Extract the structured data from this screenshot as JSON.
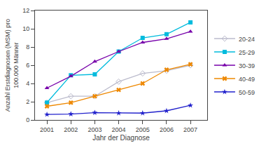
{
  "chart_data": {
    "type": "line",
    "x": [
      2001,
      2002,
      2003,
      2004,
      2005,
      2006,
      2007
    ],
    "series": [
      {
        "name": "20-24",
        "color": "#bbbbcc",
        "marker": "diamond-open",
        "values": [
          1.9,
          2.6,
          2.6,
          4.2,
          5.1,
          5.4,
          6.0
        ]
      },
      {
        "name": "25-29",
        "color": "#00bbdd",
        "marker": "square",
        "values": [
          1.9,
          4.9,
          5.0,
          7.5,
          9.0,
          9.4,
          10.7
        ]
      },
      {
        "name": "30-39",
        "color": "#7700aa",
        "marker": "triangle-up",
        "values": [
          3.5,
          4.8,
          6.4,
          7.5,
          8.5,
          8.9,
          9.7
        ]
      },
      {
        "name": "40-49",
        "color": "#ee8800",
        "marker": "x",
        "values": [
          1.5,
          1.9,
          2.6,
          3.3,
          4.0,
          5.5,
          6.1
        ]
      },
      {
        "name": "50-59",
        "color": "#2222cc",
        "marker": "star",
        "values": [
          0.6,
          0.65,
          0.8,
          0.75,
          0.75,
          1.0,
          1.6
        ]
      }
    ],
    "x_label": "Jahr der Diagnose",
    "y_label": "Anzahl Erstdiagnosen (MSM) pro\n100.000 Männer",
    "xlim": [
      2000.5,
      2007.7
    ],
    "xticks": [
      2001,
      2002,
      2003,
      2004,
      2005,
      2006,
      2007
    ],
    "ylim": [
      0,
      12
    ],
    "yticks": [
      0,
      2,
      4,
      6,
      8,
      10,
      12
    ],
    "grid": false,
    "legend": "right"
  }
}
